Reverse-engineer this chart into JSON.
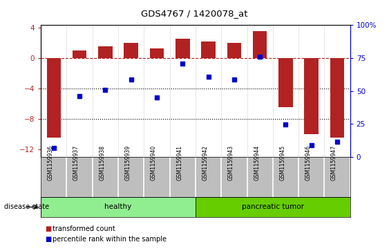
{
  "title": "GDS4767 / 1420078_at",
  "samples": [
    "GSM1159936",
    "GSM1159937",
    "GSM1159938",
    "GSM1159939",
    "GSM1159940",
    "GSM1159941",
    "GSM1159942",
    "GSM1159943",
    "GSM1159944",
    "GSM1159945",
    "GSM1159946",
    "GSM1159947"
  ],
  "bar_values": [
    -10.5,
    1.0,
    1.5,
    2.0,
    1.3,
    2.5,
    2.2,
    2.0,
    3.5,
    -6.5,
    -10.0,
    -10.5
  ],
  "scatter_values": [
    -11.8,
    -5.0,
    -4.2,
    -2.8,
    -5.2,
    -0.7,
    -2.5,
    -2.8,
    0.2,
    -8.7,
    -11.5,
    -11.0
  ],
  "bar_color": "#B22222",
  "scatter_color": "#0000CD",
  "ylim_left": [
    -13.0,
    4.333
  ],
  "ylim_right": [
    0,
    100
  ],
  "yticks_left": [
    4,
    0,
    -4,
    -8,
    -12
  ],
  "yticks_right": [
    100,
    75,
    50,
    25,
    0
  ],
  "hline_y": 0,
  "dotted_lines": [
    -4,
    -8
  ],
  "disease_groups": [
    {
      "label": "healthy",
      "start": 0,
      "end": 6,
      "color": "#90EE90"
    },
    {
      "label": "pancreatic tumor",
      "start": 6,
      "end": 12,
      "color": "#66CD00"
    }
  ],
  "legend_items": [
    {
      "label": "transformed count",
      "color": "#B22222"
    },
    {
      "label": "percentile rank within the sample",
      "color": "#0000CD"
    }
  ],
  "disease_state_label": "disease state",
  "background_color": "#FFFFFF",
  "plot_bg": "#FFFFFF",
  "tick_label_area_bg": "#BEBEBE"
}
